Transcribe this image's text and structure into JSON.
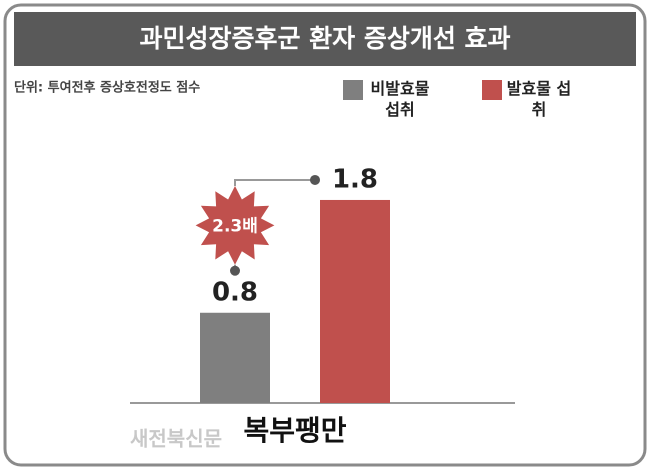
{
  "chart_data": {
    "type": "bar",
    "title": "과민성장증후군 환자 증상개선 효과",
    "subtitle": "단위: 투여전후 증상호전정도 점수",
    "categories": [
      "복부팽만"
    ],
    "series": [
      {
        "name": "비발효물 섭취",
        "color": "#7f7f7f",
        "values": [
          0.8
        ]
      },
      {
        "name": "발효물 섭취",
        "color": "#c0504d",
        "values": [
          1.8
        ]
      }
    ],
    "annotation": "2.3배",
    "watermark": "새전북신문"
  }
}
